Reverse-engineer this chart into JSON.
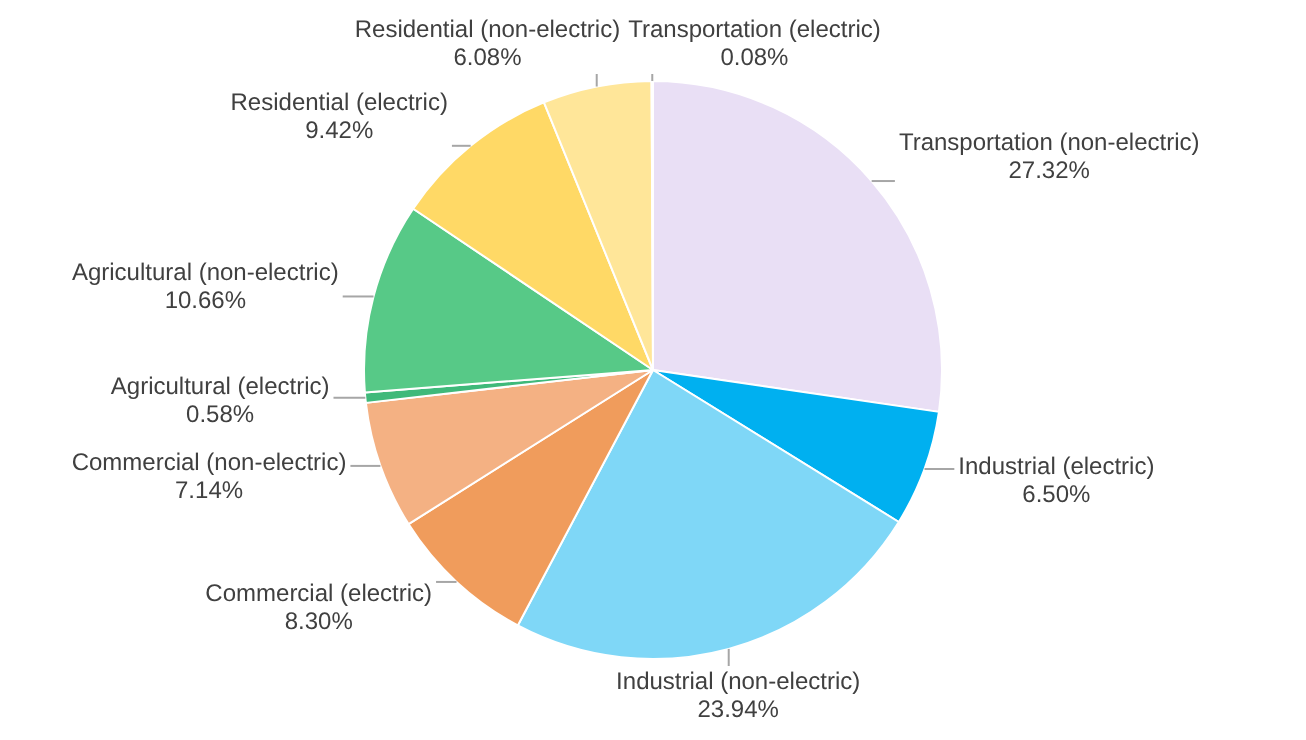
{
  "chart_data": {
    "type": "pie",
    "categories": [
      "Transportation (non-electric)",
      "Industrial (electric)",
      "Industrial (non-electric)",
      "Commercial (electric)",
      "Commercial (non-electric)",
      "Agricultural (electric)",
      "Agricultural (non-electric)",
      "Residential (electric)",
      "Residential (non-electric)",
      "Transportation (electric)"
    ],
    "values": [
      27.32,
      6.5,
      23.94,
      8.3,
      7.14,
      0.58,
      10.66,
      9.42,
      6.08,
      0.08
    ],
    "value_labels": [
      "27.32%",
      "6.50%",
      "23.94%",
      "8.30%",
      "7.14%",
      "0.58%",
      "10.66%",
      "9.42%",
      "6.08%",
      "0.08%"
    ],
    "colors": [
      "#e9dff5",
      "#00b0f0",
      "#7fd7f7",
      "#f09c5c",
      "#f4b183",
      "#3fb97a",
      "#57c987",
      "#ffd966",
      "#ffe699",
      "#7030a0"
    ],
    "legend": false
  }
}
